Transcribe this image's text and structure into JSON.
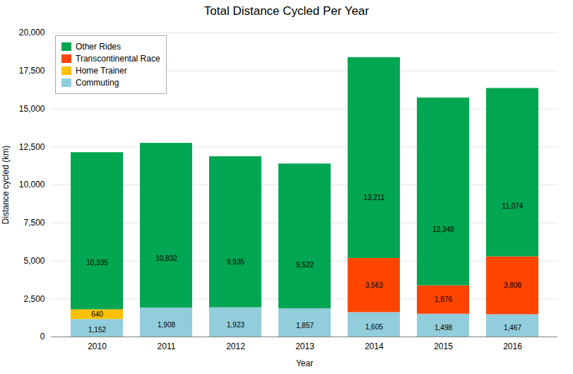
{
  "chart_data": {
    "type": "bar",
    "title": "Total Distance Cycled Per Year",
    "xlabel": "Year",
    "ylabel": "Distance cycled (km)",
    "categories": [
      "2010",
      "2011",
      "2012",
      "2013",
      "2014",
      "2015",
      "2016"
    ],
    "series": [
      {
        "name": "Commuting",
        "color": "#92CDDC",
        "values": [
          1152,
          1908,
          1923,
          1857,
          1605,
          1498,
          1467
        ],
        "value_labels": [
          "1,152",
          "1,908",
          "1,923",
          "1,857",
          "1,605",
          "1,498",
          "1,467"
        ]
      },
      {
        "name": "Home Trainer",
        "color": "#FFC000",
        "values": [
          640,
          0,
          0,
          0,
          0,
          0,
          0
        ],
        "value_labels": [
          "640",
          null,
          null,
          null,
          null,
          null,
          null
        ]
      },
      {
        "name": "Transcontinental Race",
        "color": "#FF4500",
        "values": [
          0,
          0,
          0,
          0,
          3563,
          1876,
          3808
        ],
        "value_labels": [
          null,
          null,
          null,
          null,
          "3,563",
          "1,876",
          "3,808"
        ]
      },
      {
        "name": "Other Rides",
        "color": "#00A651",
        "values": [
          10335,
          10832,
          9935,
          9522,
          13211,
          12348,
          11074
        ],
        "value_labels": [
          "10,335",
          "10,832",
          "9,935",
          "9,522",
          "13,211",
          "12,348",
          "11,074"
        ]
      }
    ],
    "stacked": true,
    "data_labels": true,
    "ylim": [
      0,
      20000
    ],
    "yticks": [
      0,
      {
        "value": 2500,
        "label": "2,500"
      },
      {
        "value": 5000,
        "label": "5,000"
      },
      {
        "value": 7500,
        "label": "7,500"
      },
      {
        "value": 10000,
        "label": "10,000"
      },
      {
        "value": 12500,
        "label": "12,500"
      },
      {
        "value": 15000,
        "label": "15,000"
      },
      {
        "value": 17500,
        "label": "17,500"
      },
      {
        "value": 20000,
        "label": "20,000"
      }
    ],
    "grid": true,
    "legend": "upper left"
  }
}
